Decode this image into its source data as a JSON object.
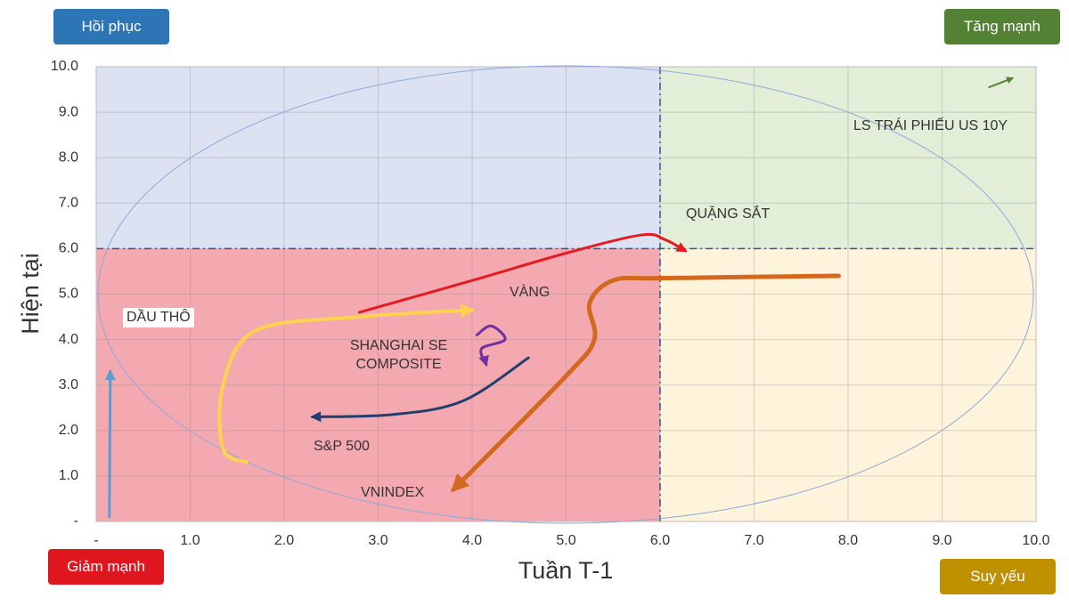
{
  "chart_data": {
    "type": "line",
    "x_label": "Tuần T-1",
    "y_label": "Hiện tại",
    "quadrant_labels": {
      "top_left": "Hồi phục",
      "top_right": "Tăng mạnh",
      "bottom_left": "Giảm mạnh",
      "bottom_right": "Suy yếu"
    },
    "quadrant_split": {
      "x": 6,
      "y": 6
    },
    "quadrant_colors": {
      "top_left": "#dce2f2",
      "top_right": "#e2eed8",
      "bottom_left": "#f4a8b0",
      "bottom_right": "#fdf4db"
    },
    "xlim": [
      0,
      10
    ],
    "ylim": [
      0,
      10
    ],
    "xticks": [
      {
        "value": 0,
        "label": "-"
      },
      {
        "value": 1,
        "label": "1.0"
      },
      {
        "value": 2,
        "label": "2.0"
      },
      {
        "value": 3,
        "label": "3.0"
      },
      {
        "value": 4,
        "label": "4.0"
      },
      {
        "value": 5,
        "label": "5.0"
      },
      {
        "value": 6,
        "label": "6.0"
      },
      {
        "value": 7,
        "label": "7.0"
      },
      {
        "value": 8,
        "label": "8.0"
      },
      {
        "value": 9,
        "label": "9.0"
      },
      {
        "value": 10,
        "label": "10.0"
      }
    ],
    "yticks": [
      {
        "value": 0,
        "label": "-"
      },
      {
        "value": 1,
        "label": "1.0"
      },
      {
        "value": 2,
        "label": "2.0"
      },
      {
        "value": 3,
        "label": "3.0"
      },
      {
        "value": 4,
        "label": "4.0"
      },
      {
        "value": 5,
        "label": "5.0"
      },
      {
        "value": 6,
        "label": "6.0"
      },
      {
        "value": 7,
        "label": "7.0"
      },
      {
        "value": 8,
        "label": "8.0"
      },
      {
        "value": 9,
        "label": "9.0"
      },
      {
        "value": 10,
        "label": "10.0"
      }
    ],
    "grid": true,
    "series": [
      {
        "name": "QUẶNG SẮT",
        "color": "#e31b23",
        "x": [
          2.8,
          4.0,
          5.0,
          5.8,
          6.05,
          6.27
        ],
        "values": [
          4.6,
          5.3,
          5.9,
          6.3,
          6.2,
          5.95
        ]
      },
      {
        "name": "VNINDEX",
        "color": "#d2691e",
        "x": [
          7.9,
          6.0,
          5.5,
          5.25,
          5.3,
          5.0,
          3.8
        ],
        "values": [
          5.4,
          5.35,
          5.3,
          4.8,
          4.0,
          3.2,
          0.7
        ]
      },
      {
        "name": "VÀNG",
        "color": "#ffd34d",
        "x": [
          1.6,
          1.35,
          1.35,
          1.7,
          2.8,
          4.0
        ],
        "values": [
          1.3,
          1.6,
          3.0,
          4.2,
          4.5,
          4.65
        ]
      },
      {
        "name": "S&P 500",
        "color": "#1f3f6e",
        "x": [
          4.6,
          3.9,
          3.15,
          2.3
        ],
        "values": [
          3.6,
          2.65,
          2.35,
          2.3
        ]
      },
      {
        "name": "SHANGHAI SE COMPOSITE",
        "color": "#7030a0",
        "x": [
          4.05,
          4.2,
          4.35,
          4.1,
          4.15
        ],
        "values": [
          4.1,
          4.3,
          4.0,
          3.8,
          3.45
        ]
      },
      {
        "name": "DẦU THÔ",
        "color": "#5b9bd5",
        "x": [
          0.14,
          0.15
        ],
        "values": [
          0.1,
          3.3
        ]
      },
      {
        "name": "LS TRÁI PHIẾU US 10Y",
        "color": "#548235",
        "x": [
          9.5,
          9.75
        ],
        "values": [
          9.55,
          9.75
        ]
      }
    ]
  }
}
